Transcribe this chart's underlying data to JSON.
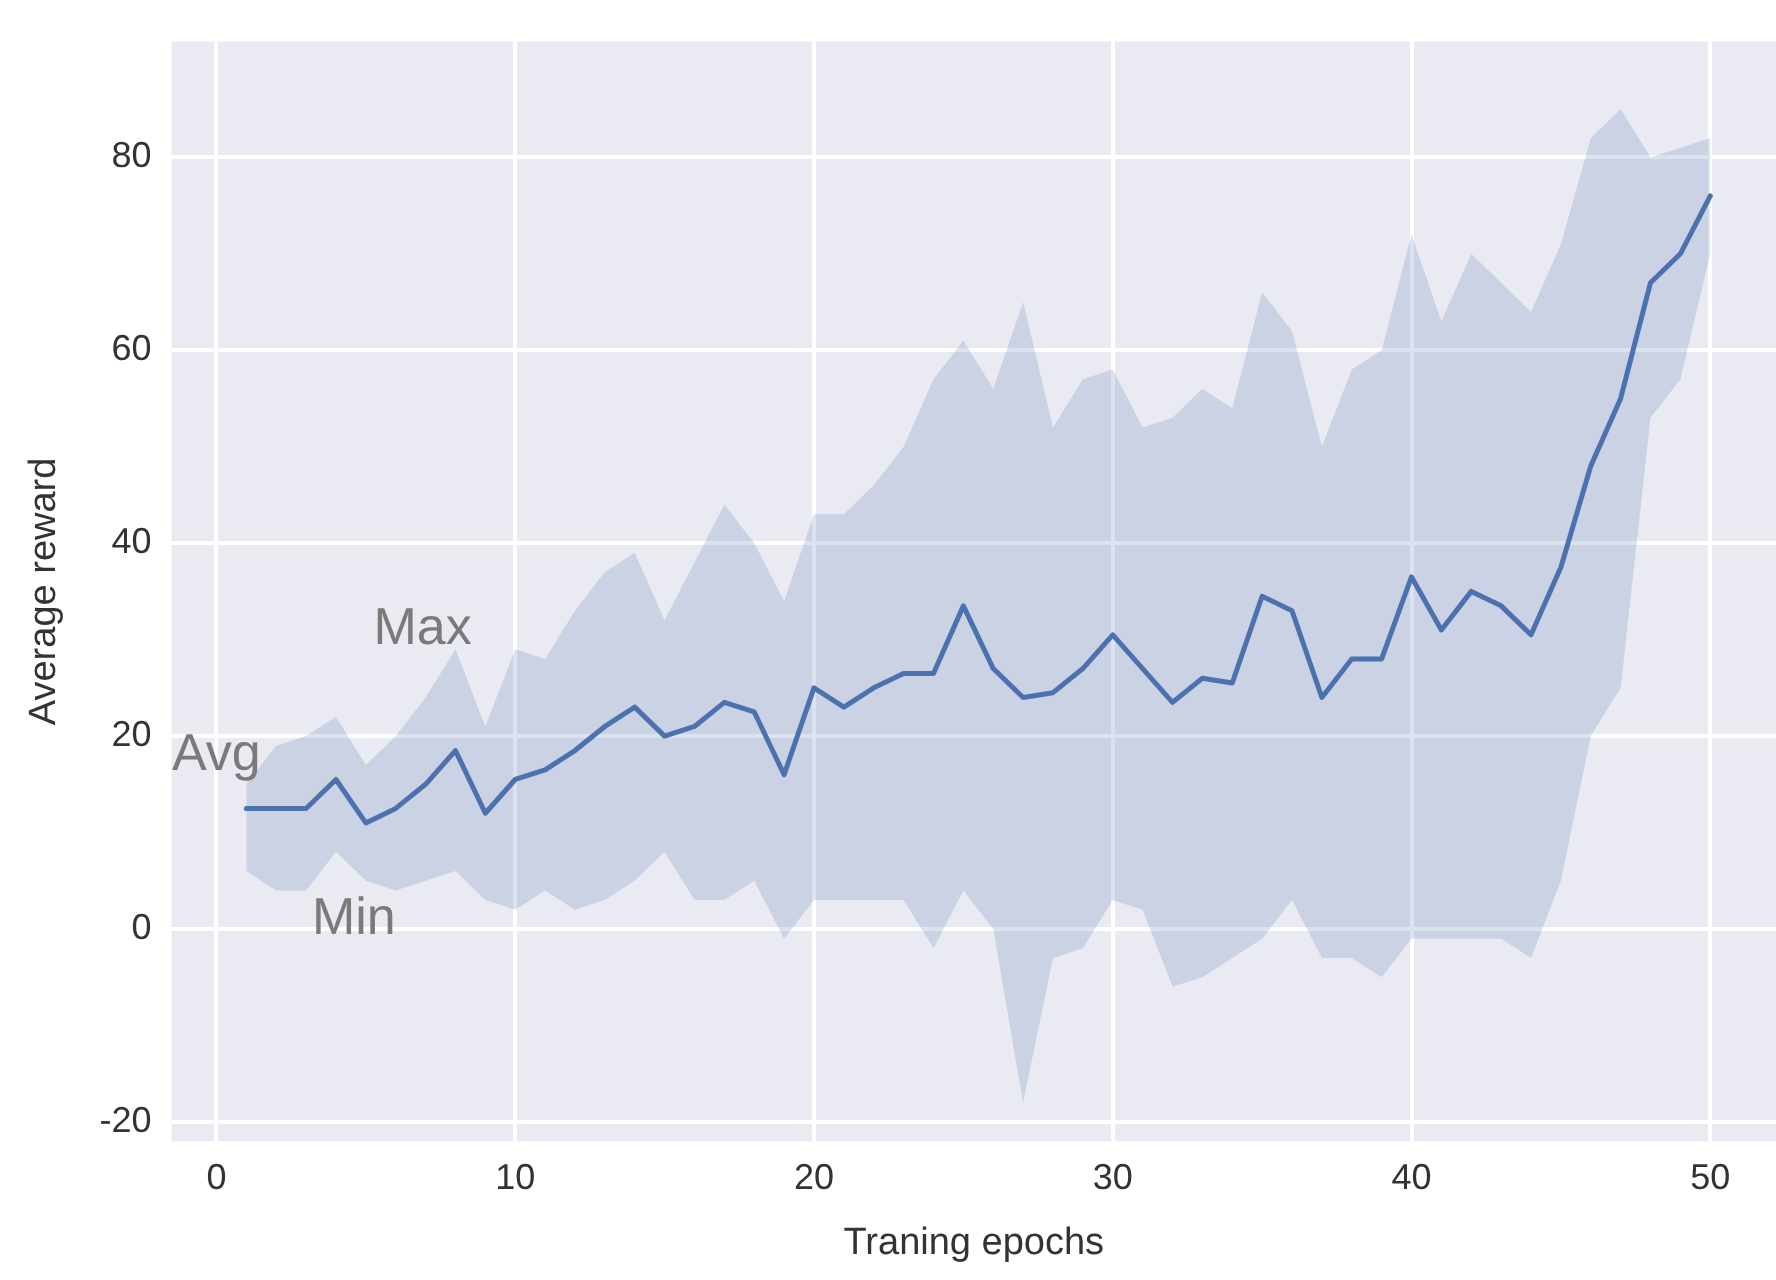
{
  "chart_data": {
    "type": "line",
    "xlabel": "Traning epochs",
    "ylabel": "Average reward",
    "x": [
      1,
      2,
      3,
      4,
      5,
      6,
      7,
      8,
      9,
      10,
      11,
      12,
      13,
      14,
      15,
      16,
      17,
      18,
      19,
      20,
      21,
      22,
      23,
      24,
      25,
      26,
      27,
      28,
      29,
      30,
      31,
      32,
      33,
      34,
      35,
      36,
      37,
      38,
      39,
      40,
      41,
      42,
      43,
      44,
      45,
      46,
      47,
      48,
      49,
      50
    ],
    "series": [
      {
        "color": "#4c72b0",
        "values": [
          12.5,
          12.5,
          12.5,
          15.5,
          11,
          12.5,
          15,
          18.5,
          12,
          15.5,
          16.5,
          18.5,
          21,
          23,
          20,
          21,
          23.5,
          22.5,
          16,
          25,
          23,
          25,
          26.5,
          26.5,
          33.5,
          27,
          24,
          24.5,
          27,
          30.5,
          27,
          23.5,
          26,
          25.5,
          34.5,
          33,
          24,
          28,
          28,
          36.5,
          31,
          35,
          33.5,
          30.5,
          37.5,
          48,
          55,
          67,
          70,
          76
        ],
        "upper": [
          15,
          19,
          20,
          22,
          17,
          20,
          24,
          29,
          21,
          29,
          28,
          33,
          37,
          39,
          32,
          38,
          44,
          40,
          34,
          43,
          43,
          46,
          50,
          57,
          61,
          56,
          65,
          52,
          57,
          58,
          52,
          53,
          56,
          54,
          66,
          62,
          50,
          58,
          60,
          72,
          63,
          70,
          67,
          64,
          71,
          82,
          85,
          80,
          81,
          82
        ],
        "lower": [
          6,
          4,
          4,
          8,
          5,
          4,
          5,
          6,
          3,
          2,
          4,
          2,
          3,
          5,
          8,
          3,
          3,
          5,
          -1,
          3,
          3,
          3,
          3,
          -2,
          4,
          0,
          -18,
          -3,
          -2,
          3,
          2,
          -6,
          -5,
          -3,
          -1,
          3,
          -3,
          -3,
          -5,
          -1,
          -1,
          -1,
          -1,
          -3,
          5,
          20,
          25,
          53,
          57,
          70
        ]
      }
    ],
    "xlim": [
      -1.5,
      52.2
    ],
    "ylim": [
      -22,
      92
    ],
    "xticks": [
      0,
      10,
      20,
      30,
      40,
      50
    ],
    "yticks": [
      -20,
      0,
      20,
      40,
      60,
      80
    ],
    "grid": true,
    "marker": "none",
    "line_style": "solid",
    "annotations": [
      "Max",
      "Avg",
      "Min"
    ]
  }
}
